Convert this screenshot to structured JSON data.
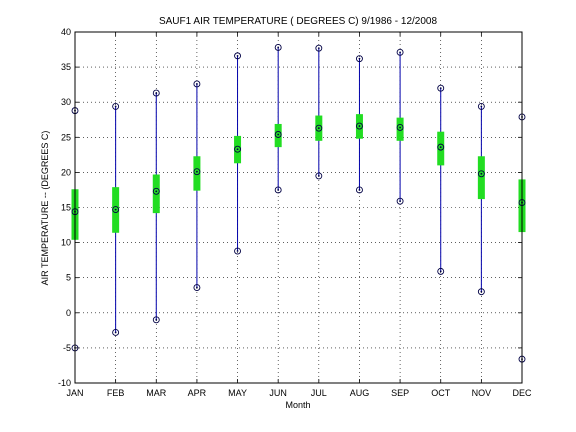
{
  "chart_data": {
    "type": "box",
    "title": "SAUF1  AIR TEMPERATURE ( DEGREES C) 9/1986 - 12/2008",
    "xlabel": "Month",
    "ylabel": "AIR TEMPERATURE -- (DEGREES C)",
    "ylim": [
      -10,
      40
    ],
    "yticks": [
      -10,
      -5,
      0,
      5,
      10,
      15,
      20,
      25,
      30,
      35,
      40
    ],
    "grid": true,
    "categories": [
      "JAN",
      "FEB",
      "MAR",
      "APR",
      "MAY",
      "JUN",
      "JUL",
      "AUG",
      "SEP",
      "OCT",
      "NOV",
      "DEC"
    ],
    "series": [
      {
        "min": [
          -5.0,
          -2.8,
          -1.0,
          3.6,
          8.8,
          17.5,
          19.5,
          17.5,
          15.9,
          5.9,
          3.0,
          -6.6
        ],
        "max": [
          28.8,
          29.4,
          31.3,
          32.6,
          36.6,
          37.8,
          37.7,
          36.2,
          37.1,
          32.0,
          29.4,
          27.9
        ],
        "mean": [
          14.4,
          14.7,
          17.3,
          20.1,
          23.3,
          25.4,
          26.3,
          26.6,
          26.4,
          23.6,
          19.8,
          15.7
        ],
        "q_low": [
          10.4,
          11.4,
          14.2,
          17.4,
          21.3,
          23.6,
          24.5,
          24.8,
          24.5,
          21.0,
          16.2,
          11.5
        ],
        "q_high": [
          17.6,
          17.9,
          19.7,
          22.3,
          25.2,
          26.9,
          28.1,
          28.3,
          27.8,
          25.8,
          22.3,
          19.0
        ]
      }
    ],
    "colors": {
      "whisker": "#0000aa",
      "box": "#22dd22",
      "marker": "#000044",
      "grid": "#000000"
    }
  }
}
